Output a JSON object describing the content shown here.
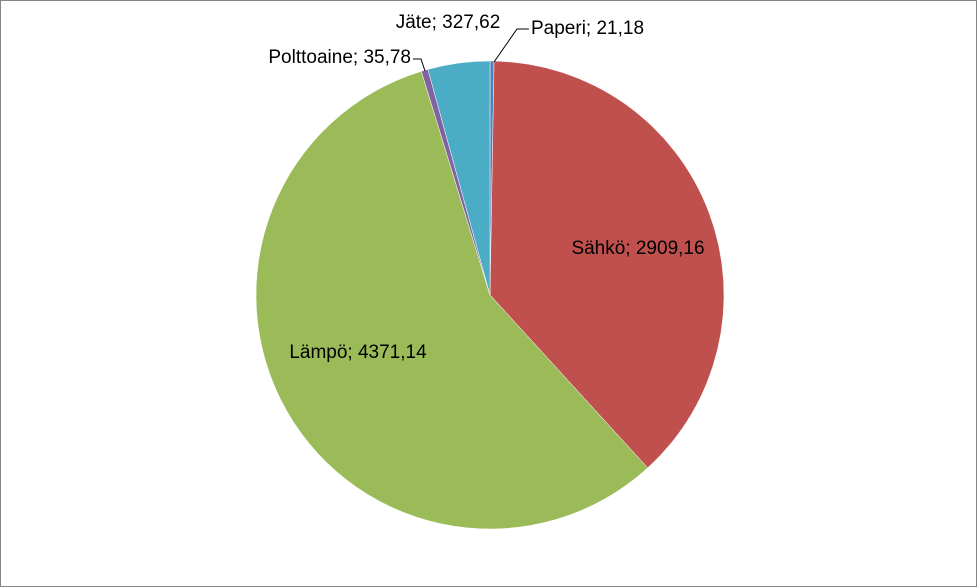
{
  "chart_data": {
    "type": "pie",
    "start_angle_deg": 0,
    "direction": "clockwise",
    "slices": [
      {
        "category": "Paperi",
        "value": 21.18,
        "label": "Paperi; 21,18",
        "color": "#4f81bd"
      },
      {
        "category": "Sähkö",
        "value": 2909.16,
        "label": "Sähkö; 2909,16",
        "color": "#c0504d"
      },
      {
        "category": "Lämpö",
        "value": 4371.14,
        "label": "Lämpö; 4371,14",
        "color": "#9bbb59"
      },
      {
        "category": "Polttoaine",
        "value": 35.78,
        "label": "Polttoaine; 35,78",
        "color": "#8064a2"
      },
      {
        "category": "Jäte",
        "value": 327.62,
        "label": "Jäte; 327,62",
        "color": "#4bacc6"
      }
    ],
    "leader_line_color": "#000000",
    "legend": "none"
  }
}
